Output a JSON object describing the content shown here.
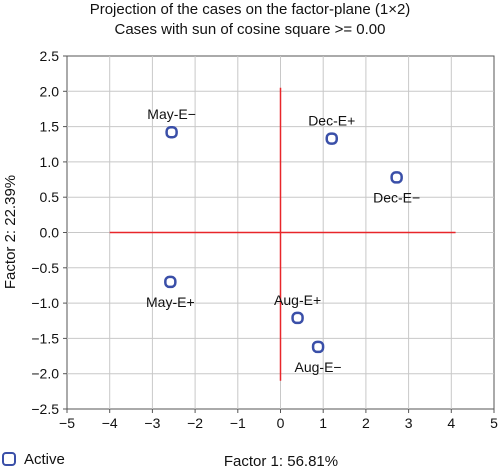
{
  "chart_data": {
    "type": "scatter",
    "title": "Projection of the cases on the factor-plane (1×2)",
    "subtitle": "Cases with sun of cosine square >= 0.00",
    "xlabel": "Factor 1: 56.81%",
    "ylabel": "Factor 2: 22.39%",
    "xlim": [
      -5,
      5
    ],
    "ylim": [
      -2.5,
      2.5
    ],
    "xticks": [
      -5,
      -4,
      -3,
      -2,
      -1,
      0,
      1,
      2,
      3,
      4,
      5
    ],
    "yticks": [
      2.5,
      2.0,
      1.5,
      1.0,
      0.5,
      0.0,
      -0.5,
      -1.0,
      -1.5,
      -2.0,
      -2.5
    ],
    "xtick_labels": [
      "−5",
      "−4",
      "−3",
      "−2",
      "−1",
      "0",
      "1",
      "2",
      "3",
      "4",
      "5"
    ],
    "ytick_labels": [
      "2.5",
      "2.0",
      "1.5",
      "1.0",
      "0.5",
      "0.0",
      "−0.5",
      "−1.0",
      "−1.5",
      "−2.0",
      "−2.5"
    ],
    "grid": true,
    "reference_lines": {
      "horizontal": {
        "y": 0,
        "x_from": -4,
        "x_to": 4.1
      },
      "vertical": {
        "x": 0,
        "y_from": -2.1,
        "y_to": 2.05
      },
      "color": "#e8262a"
    },
    "series": [
      {
        "name": "Active",
        "color": "#3a4fa8",
        "points": [
          {
            "label": "May-E−",
            "x": -2.55,
            "y": 1.42,
            "label_pos": "above"
          },
          {
            "label": "Dec-E+",
            "x": 1.2,
            "y": 1.33,
            "label_pos": "above"
          },
          {
            "label": "Dec-E−",
            "x": 2.72,
            "y": 0.78,
            "label_pos": "below"
          },
          {
            "label": "May-E+",
            "x": -2.58,
            "y": -0.7,
            "label_pos": "below"
          },
          {
            "label": "Aug-E+",
            "x": 0.4,
            "y": -1.21,
            "label_pos": "above"
          },
          {
            "label": "Aug-E−",
            "x": 0.88,
            "y": -1.62,
            "label_pos": "below"
          }
        ]
      }
    ],
    "legend": {
      "position": "bottom-left",
      "label": "Active"
    }
  }
}
